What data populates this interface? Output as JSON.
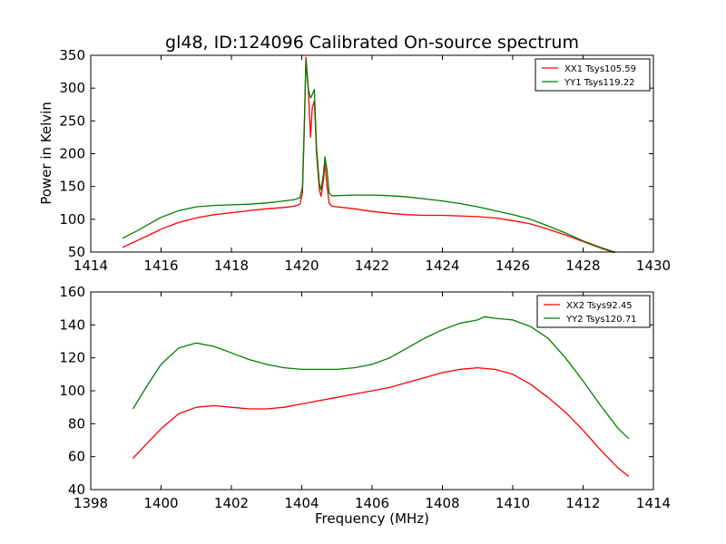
{
  "figure": {
    "title": "gl48, ID:124096 Calibrated On-source spectrum",
    "ylabel": "Power in Kelvin",
    "xlabel": "Frequency (MHz)"
  },
  "chart_data": [
    {
      "type": "line",
      "title": "gl48, ID:124096 Calibrated On-source spectrum",
      "xlabel": "",
      "ylabel": "Power in Kelvin",
      "xlim": [
        1414,
        1430
      ],
      "ylim": [
        50,
        350
      ],
      "xticks": [
        "1414",
        "1416",
        "1418",
        "1420",
        "1422",
        "1424",
        "1426",
        "1428",
        "1430"
      ],
      "yticks": [
        "50",
        "100",
        "150",
        "200",
        "250",
        "300",
        "350"
      ],
      "grid": false,
      "legend_position": "top-right",
      "series": [
        {
          "name": "XX1 Tsys105.59",
          "color": "#ff0000",
          "x": [
            1414.9,
            1415.3,
            1415.7,
            1416.0,
            1416.5,
            1417.0,
            1417.5,
            1418.0,
            1418.5,
            1419.0,
            1419.5,
            1419.8,
            1419.95,
            1420.02,
            1420.08,
            1420.12,
            1420.18,
            1420.25,
            1420.3,
            1420.36,
            1420.42,
            1420.5,
            1420.55,
            1420.62,
            1420.66,
            1420.72,
            1420.78,
            1420.85,
            1421.0,
            1421.5,
            1422.0,
            1422.5,
            1423.0,
            1423.5,
            1424.0,
            1424.5,
            1425.0,
            1425.5,
            1426.0,
            1426.5,
            1427.0,
            1427.5,
            1428.0,
            1428.5,
            1428.9
          ],
          "values": [
            57,
            67,
            77,
            85,
            95,
            102,
            107,
            110,
            113,
            116,
            118,
            120,
            123,
            140,
            250,
            347,
            305,
            225,
            270,
            280,
            200,
            145,
            135,
            160,
            185,
            150,
            125,
            120,
            119,
            116,
            112,
            109,
            107,
            106,
            106,
            105,
            104,
            102,
            98,
            93,
            85,
            76,
            66,
            56,
            49
          ]
        },
        {
          "name": "YY1 Tsys119.22",
          "color": "#008000",
          "x": [
            1414.9,
            1415.3,
            1415.7,
            1416.0,
            1416.5,
            1417.0,
            1417.5,
            1418.0,
            1418.5,
            1419.0,
            1419.5,
            1419.8,
            1419.95,
            1420.02,
            1420.08,
            1420.12,
            1420.18,
            1420.25,
            1420.3,
            1420.36,
            1420.42,
            1420.5,
            1420.55,
            1420.62,
            1420.66,
            1420.72,
            1420.78,
            1420.85,
            1421.0,
            1421.5,
            1422.0,
            1422.5,
            1423.0,
            1423.5,
            1424.0,
            1424.5,
            1425.0,
            1425.5,
            1426.0,
            1426.5,
            1427.0,
            1427.5,
            1428.0,
            1428.5,
            1428.9
          ],
          "values": [
            71,
            82,
            94,
            103,
            113,
            119,
            121,
            122,
            123,
            125,
            128,
            130,
            133,
            150,
            260,
            343,
            300,
            285,
            290,
            298,
            210,
            155,
            145,
            170,
            195,
            175,
            140,
            136,
            136,
            137,
            137,
            136,
            134,
            131,
            128,
            124,
            119,
            113,
            107,
            100,
            90,
            79,
            67,
            57,
            50
          ]
        }
      ]
    },
    {
      "type": "line",
      "title": "",
      "xlabel": "Frequency (MHz)",
      "ylabel": "",
      "xlim": [
        1398,
        1414
      ],
      "ylim": [
        40,
        160
      ],
      "xticks": [
        "1398",
        "1400",
        "1402",
        "1404",
        "1406",
        "1408",
        "1410",
        "1412",
        "1414"
      ],
      "yticks": [
        "40",
        "60",
        "80",
        "100",
        "120",
        "140",
        "160"
      ],
      "grid": false,
      "legend_position": "top-right",
      "series": [
        {
          "name": "XX2 Tsys92.45",
          "color": "#ff0000",
          "x": [
            1399.2,
            1399.6,
            1400.0,
            1400.5,
            1401.0,
            1401.5,
            1402.0,
            1402.5,
            1403.0,
            1403.5,
            1404.0,
            1404.5,
            1405.0,
            1405.5,
            1406.0,
            1406.5,
            1407.0,
            1407.5,
            1408.0,
            1408.5,
            1409.0,
            1409.5,
            1410.0,
            1410.5,
            1411.0,
            1411.5,
            1412.0,
            1412.5,
            1413.0,
            1413.3
          ],
          "values": [
            59,
            68,
            77,
            86,
            90,
            91,
            90,
            89,
            89,
            90,
            92,
            94,
            96,
            98,
            100,
            102,
            105,
            108,
            111,
            113,
            114,
            113,
            110,
            104,
            96,
            87,
            76,
            64,
            53,
            48
          ]
        },
        {
          "name": "YY2 Tsys120.71",
          "color": "#008000",
          "x": [
            1399.2,
            1399.6,
            1400.0,
            1400.5,
            1401.0,
            1401.5,
            1402.0,
            1402.5,
            1403.0,
            1403.5,
            1404.0,
            1404.5,
            1405.0,
            1405.5,
            1406.0,
            1406.5,
            1407.0,
            1407.5,
            1408.0,
            1408.5,
            1409.0,
            1409.2,
            1409.5,
            1410.0,
            1410.5,
            1411.0,
            1411.5,
            1412.0,
            1412.5,
            1413.0,
            1413.3
          ],
          "values": [
            89,
            103,
            116,
            126,
            129,
            127,
            123,
            119,
            116,
            114,
            113,
            113,
            113,
            114,
            116,
            120,
            126,
            132,
            137,
            141,
            143,
            145,
            144,
            143,
            139,
            132,
            120,
            106,
            91,
            77,
            71
          ]
        }
      ]
    }
  ]
}
